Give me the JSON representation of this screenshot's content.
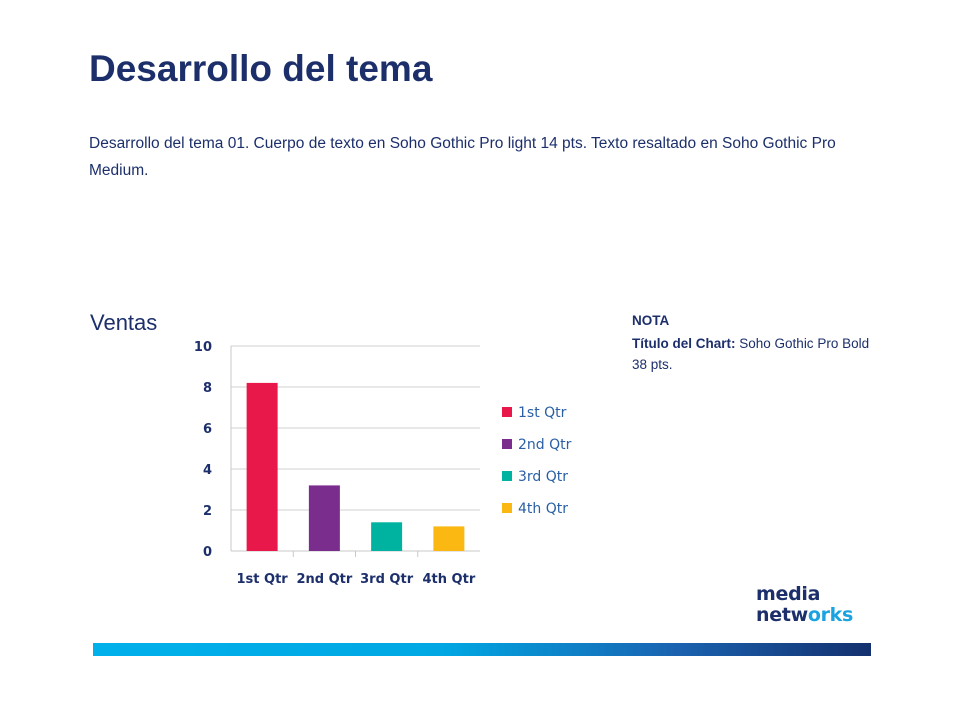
{
  "page": {
    "title": "Desarrollo del tema",
    "body_text": "Desarrollo del tema 01. Cuerpo de texto en Soho Gothic Pro light 14 pts. Texto resaltado en Soho Gothic Pro Medium."
  },
  "note": {
    "heading": "NOTA",
    "label": "Título del Chart:",
    "text": "Soho Gothic Pro Bold  38 pts."
  },
  "logo": {
    "line1": "media",
    "line2_prefix": "netw",
    "line2_accent": "orks"
  },
  "colors": {
    "title": "#1c2f6b",
    "brand_accent": "#1aa3e0"
  },
  "chart_data": {
    "type": "bar",
    "title": "Ventas",
    "categories": [
      "1st Qtr",
      "2nd Qtr",
      "3rd Qtr",
      "4th Qtr"
    ],
    "values": [
      8.2,
      3.2,
      1.4,
      1.2
    ],
    "colors": [
      "#e8194a",
      "#7b2d8e",
      "#00b2a0",
      "#fbb812"
    ],
    "legend": [
      "1st Qtr",
      "2nd Qtr",
      "3rd Qtr",
      "4th Qtr"
    ],
    "legend_position": "right",
    "ylim": [
      0,
      10
    ],
    "yticks": [
      0,
      2,
      4,
      6,
      8,
      10
    ],
    "grid": true,
    "xlabel": "",
    "ylabel": ""
  }
}
